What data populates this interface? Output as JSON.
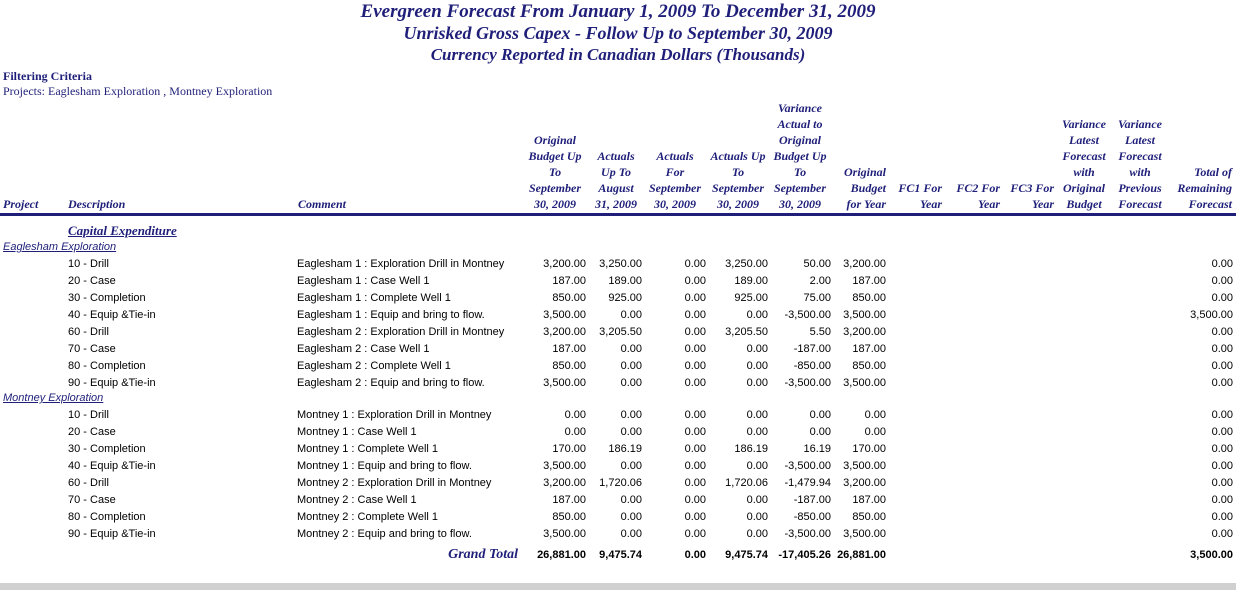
{
  "report": {
    "title_line1": "Evergreen Forecast From January 1, 2009 To December 31, 2009",
    "title_line2": "Unrisked Gross Capex - Follow Up to September 30, 2009",
    "title_line3": "Currency Reported in Canadian Dollars (Thousands)"
  },
  "filter": {
    "label": "Filtering Criteria",
    "value": "Projects: Eaglesham Exploration , Montney Exploration"
  },
  "headers": {
    "project": "Project",
    "description": "Description",
    "comment": "Comment",
    "orig_budget": [
      "Original",
      "Budget Up",
      "To",
      "September",
      "30, 2009"
    ],
    "actuals_aug": [
      "Actuals",
      "Up To",
      "August",
      "31, 2009"
    ],
    "actuals_sep": [
      "Actuals",
      "For",
      "September",
      "30, 2009"
    ],
    "actuals_to_sep": [
      "Actuals Up",
      "To",
      "September",
      "30, 2009"
    ],
    "variance_actual": [
      "Variance",
      "Actual to",
      "Original",
      "Budget Up",
      "To",
      "September",
      "30, 2009"
    ],
    "orig_year": [
      "Original",
      "Budget",
      "for Year"
    ],
    "fc1": [
      "FC1 For",
      "Year"
    ],
    "fc2": [
      "FC2 For",
      "Year"
    ],
    "fc3": [
      "FC3 For",
      "Year"
    ],
    "var_latest_orig": [
      "Variance",
      "Latest",
      "Forecast",
      "with",
      "Original",
      "Budget"
    ],
    "var_latest_prev": [
      "Variance",
      "Latest",
      "Forecast",
      "with",
      "Previous",
      "Forecast"
    ],
    "total_remaining": [
      "Total of",
      "Remaining",
      "Forecast"
    ]
  },
  "section_title": "Capital Expenditure",
  "groups": [
    {
      "name": "Eaglesham Exploration",
      "rows": [
        {
          "desc": "10 - Drill",
          "comment": "Eaglesham 1 : Exploration Drill in Montney",
          "ob": "3,200.00",
          "aa": "3,250.00",
          "as": "0.00",
          "at": "3,250.00",
          "va": "50.00",
          "oy": "3,200.00",
          "tr": "0.00"
        },
        {
          "desc": "20 - Case",
          "comment": "Eaglesham 1 : Case Well 1",
          "ob": "187.00",
          "aa": "189.00",
          "as": "0.00",
          "at": "189.00",
          "va": "2.00",
          "oy": "187.00",
          "tr": "0.00"
        },
        {
          "desc": "30 - Completion",
          "comment": "Eaglesham 1 : Complete Well 1",
          "ob": "850.00",
          "aa": "925.00",
          "as": "0.00",
          "at": "925.00",
          "va": "75.00",
          "oy": "850.00",
          "tr": "0.00"
        },
        {
          "desc": "40 - Equip &Tie-in",
          "comment": "Eaglesham 1 : Equip and bring to flow.",
          "ob": "3,500.00",
          "aa": "0.00",
          "as": "0.00",
          "at": "0.00",
          "va": "-3,500.00",
          "oy": "3,500.00",
          "tr": "3,500.00"
        },
        {
          "desc": "60 - Drill",
          "comment": "Eaglesham 2 : Exploration Drill in Montney",
          "ob": "3,200.00",
          "aa": "3,205.50",
          "as": "0.00",
          "at": "3,205.50",
          "va": "5.50",
          "oy": "3,200.00",
          "tr": "0.00"
        },
        {
          "desc": "70 - Case",
          "comment": "Eaglesham 2 : Case Well 1",
          "ob": "187.00",
          "aa": "0.00",
          "as": "0.00",
          "at": "0.00",
          "va": "-187.00",
          "oy": "187.00",
          "tr": "0.00"
        },
        {
          "desc": "80 - Completion",
          "comment": "Eaglesham 2 : Complete Well 1",
          "ob": "850.00",
          "aa": "0.00",
          "as": "0.00",
          "at": "0.00",
          "va": "-850.00",
          "oy": "850.00",
          "tr": "0.00"
        },
        {
          "desc": "90 - Equip &Tie-in",
          "comment": "Eaglesham 2 : Equip and bring to flow.",
          "ob": "3,500.00",
          "aa": "0.00",
          "as": "0.00",
          "at": "0.00",
          "va": "-3,500.00",
          "oy": "3,500.00",
          "tr": "0.00"
        }
      ]
    },
    {
      "name": "Montney Exploration",
      "rows": [
        {
          "desc": "10 - Drill",
          "comment": "Montney 1 : Exploration Drill in Montney",
          "ob": "0.00",
          "aa": "0.00",
          "as": "0.00",
          "at": "0.00",
          "va": "0.00",
          "oy": "0.00",
          "tr": "0.00"
        },
        {
          "desc": "20 - Case",
          "comment": "Montney 1 : Case Well 1",
          "ob": "0.00",
          "aa": "0.00",
          "as": "0.00",
          "at": "0.00",
          "va": "0.00",
          "oy": "0.00",
          "tr": "0.00"
        },
        {
          "desc": "30 - Completion",
          "comment": "Montney 1 : Complete Well 1",
          "ob": "170.00",
          "aa": "186.19",
          "as": "0.00",
          "at": "186.19",
          "va": "16.19",
          "oy": "170.00",
          "tr": "0.00"
        },
        {
          "desc": "40 - Equip &Tie-in",
          "comment": "Montney 1 : Equip and bring to flow.",
          "ob": "3,500.00",
          "aa": "0.00",
          "as": "0.00",
          "at": "0.00",
          "va": "-3,500.00",
          "oy": "3,500.00",
          "tr": "0.00"
        },
        {
          "desc": "60 - Drill",
          "comment": "Montney 2 : Exploration Drill in Montney",
          "ob": "3,200.00",
          "aa": "1,720.06",
          "as": "0.00",
          "at": "1,720.06",
          "va": "-1,479.94",
          "oy": "3,200.00",
          "tr": "0.00"
        },
        {
          "desc": "70 - Case",
          "comment": "Montney 2 : Case Well 1",
          "ob": "187.00",
          "aa": "0.00",
          "as": "0.00",
          "at": "0.00",
          "va": "-187.00",
          "oy": "187.00",
          "tr": "0.00"
        },
        {
          "desc": "80 - Completion",
          "comment": "Montney 2 : Complete Well 1",
          "ob": "850.00",
          "aa": "0.00",
          "as": "0.00",
          "at": "0.00",
          "va": "-850.00",
          "oy": "850.00",
          "tr": "0.00"
        },
        {
          "desc": "90 - Equip &Tie-in",
          "comment": "Montney 2 : Equip and bring to flow.",
          "ob": "3,500.00",
          "aa": "0.00",
          "as": "0.00",
          "at": "0.00",
          "va": "-3,500.00",
          "oy": "3,500.00",
          "tr": "0.00"
        }
      ]
    }
  ],
  "grand_total": {
    "label": "Grand Total",
    "ob": "26,881.00",
    "aa": "9,475.74",
    "as": "0.00",
    "at": "9,475.74",
    "va": "-17,405.26",
    "oy": "26,881.00",
    "tr": "3,500.00"
  }
}
